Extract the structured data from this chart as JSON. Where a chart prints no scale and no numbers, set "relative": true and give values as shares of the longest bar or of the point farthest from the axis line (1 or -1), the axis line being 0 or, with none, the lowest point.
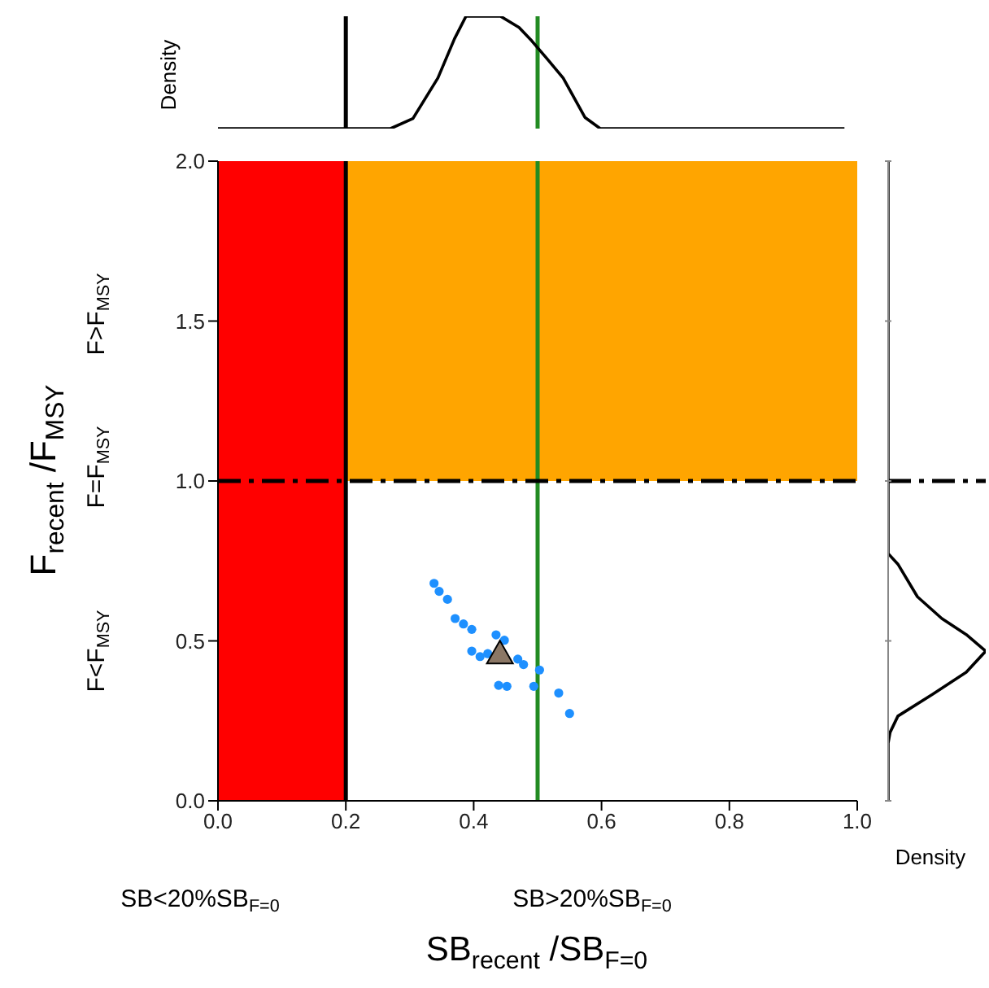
{
  "chart_data": [
    {
      "type": "scatter",
      "xlabel": "SB$_{recent}$ /SB$_{F=0}$",
      "ylabel": "F$_{recent}$ /F$_{MSY}$",
      "xlim": [
        0,
        1
      ],
      "xticks": [
        {
          "value": 0,
          "label": "0.0"
        },
        {
          "value": 0.2,
          "label": "0.2"
        },
        {
          "value": 0.4,
          "label": "0.4"
        },
        {
          "value": 0.6,
          "label": "0.6"
        },
        {
          "value": 0.8,
          "label": "0.8"
        },
        {
          "value": 1,
          "label": "1.0"
        }
      ],
      "ylim": [
        0,
        2
      ],
      "yticks": [
        {
          "value": 0,
          "label": "0.0"
        },
        {
          "value": 0.5,
          "label": "0.5"
        },
        {
          "value": 1,
          "label": "1.0"
        },
        {
          "value": 1.5,
          "label": "1.5"
        },
        {
          "value": 2,
          "label": "2.0"
        }
      ],
      "bands": [
        {
          "axis": "y",
          "from": 1,
          "to": 2,
          "color": "#ffa500"
        },
        {
          "axis": "x",
          "from": 0,
          "to": 0.2,
          "color": "#ff0000"
        }
      ],
      "ref_lines": [
        {
          "axis": "x",
          "value": 0.2,
          "color": "#000000",
          "line_style": "solid"
        },
        {
          "axis": "x",
          "value": 0.5,
          "color": "#228b22",
          "line_style": "solid"
        },
        {
          "axis": "y",
          "value": 1,
          "color": "#000000",
          "line_style": "dashed"
        }
      ],
      "annotations": [
        "F<F$_{MSY}$",
        "F=F$_{MSY}$",
        "F>F$_{MSY}$",
        "SB<20%SB$_{F=0}$",
        "SB>20%SB$_{F=0}$"
      ],
      "series": [
        {
          "color": "#1e90ff",
          "marker": "circle",
          "x": [
            0.338,
            0.346,
            0.359,
            0.371,
            0.384,
            0.397,
            0.435,
            0.448,
            0.397,
            0.41,
            0.422,
            0.469,
            0.478,
            0.503,
            0.439,
            0.452,
            0.494,
            0.533,
            0.55
          ],
          "values": [
            0.68,
            0.655,
            0.63,
            0.57,
            0.553,
            0.536,
            0.519,
            0.502,
            0.468,
            0.451,
            0.46,
            0.443,
            0.426,
            0.409,
            0.361,
            0.358,
            0.358,
            0.337,
            0.273
          ]
        },
        {
          "color": "#8b7765",
          "marker": "triangle",
          "x": [
            0.441
          ],
          "values": [
            0.46
          ]
        }
      ]
    },
    {
      "type": "line",
      "relative": true,
      "ylabel": "Density",
      "xlim": [
        0,
        1
      ],
      "tick_labels": false,
      "ref_lines": [
        {
          "axis": "x",
          "value": 0.2,
          "color": "#000000",
          "line_style": "solid"
        },
        {
          "axis": "x",
          "value": 0.5,
          "color": "#228b22",
          "line_style": "solid"
        }
      ],
      "series": [
        {
          "color": "#000000",
          "x": [
            0,
            0.27,
            0.305,
            0.344,
            0.37,
            0.388,
            0.42,
            0.442,
            0.471,
            0.491,
            0.515,
            0.54,
            0.574,
            0.598,
            0.98
          ],
          "values": [
            0,
            0,
            0.09,
            0.45,
            0.8,
            1,
            1,
            1,
            0.9,
            0.78,
            0.62,
            0.45,
            0.1,
            0,
            0
          ]
        }
      ]
    },
    {
      "type": "line",
      "relative": true,
      "orientation": "horizontal",
      "xlabel": "Density",
      "ylim": [
        0,
        2
      ],
      "yticks": [
        0,
        0.5,
        1,
        1.5,
        2
      ],
      "tick_labels": false,
      "ref_lines": [
        {
          "axis": "y",
          "value": 1,
          "color": "#000000",
          "line_style": "dashed"
        }
      ],
      "series": [
        {
          "color": "#000000",
          "x": [
            0,
            0.18,
            0.214,
            0.265,
            0.332,
            0.402,
            0.468,
            0.52,
            0.57,
            0.638,
            0.74,
            0.773,
            2
          ],
          "values": [
            0,
            0,
            0.02,
            0.1,
            0.45,
            0.8,
            1,
            0.8,
            0.55,
            0.3,
            0.1,
            0,
            0
          ]
        }
      ]
    }
  ]
}
